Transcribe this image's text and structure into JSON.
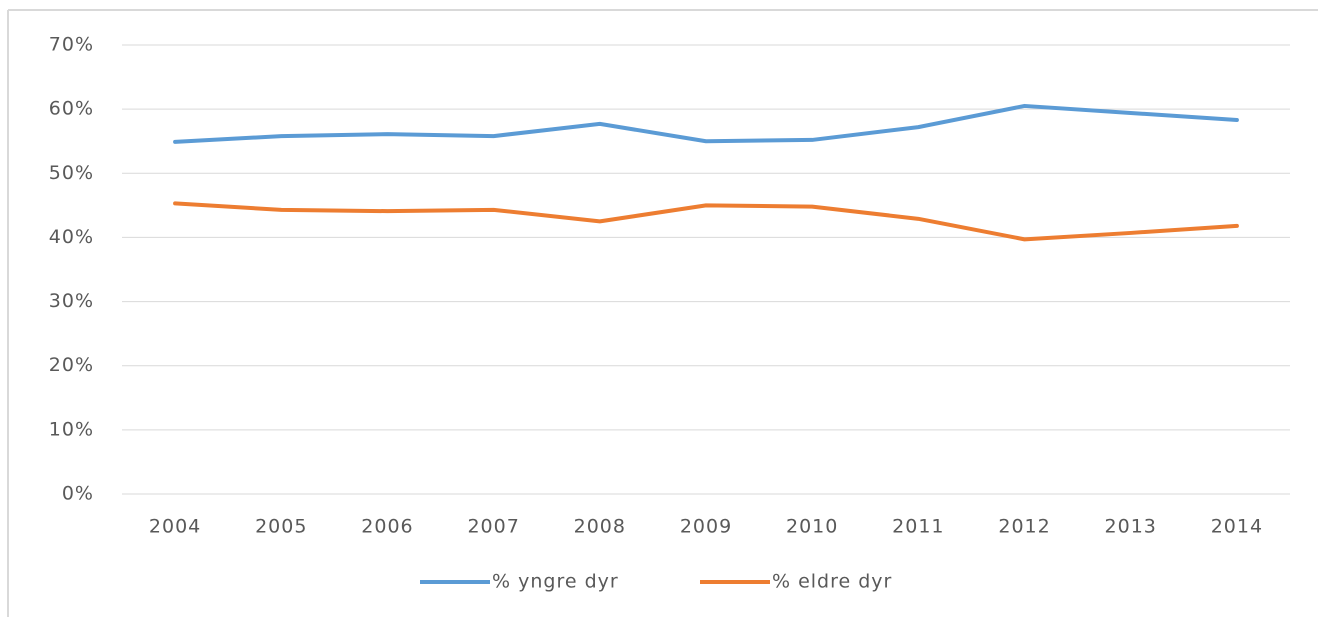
{
  "chart_data": {
    "type": "line",
    "categories": [
      "2004",
      "2005",
      "2006",
      "2007",
      "2008",
      "2009",
      "2010",
      "2011",
      "2012",
      "2013",
      "2014"
    ],
    "series": [
      {
        "name": "% yngre dyr",
        "color": "#5b9bd5",
        "values": [
          54.9,
          55.8,
          56.1,
          55.8,
          57.7,
          55.0,
          55.2,
          57.2,
          60.5,
          59.4,
          58.3
        ]
      },
      {
        "name": "% eldre dyr",
        "color": "#ed7d31",
        "values": [
          45.3,
          44.3,
          44.1,
          44.3,
          42.5,
          45.0,
          44.8,
          42.9,
          39.7,
          40.7,
          41.8
        ]
      }
    ],
    "ylim": [
      0,
      70
    ],
    "yticks": [
      {
        "value": 0,
        "label": "0%"
      },
      {
        "value": 10,
        "label": "10%"
      },
      {
        "value": 20,
        "label": "20%"
      },
      {
        "value": 30,
        "label": "30%"
      },
      {
        "value": 40,
        "label": "40%"
      },
      {
        "value": 50,
        "label": "50%"
      },
      {
        "value": 60,
        "label": "60%"
      },
      {
        "value": 70,
        "label": "70%"
      }
    ],
    "grid": true,
    "legend": "bottom"
  }
}
